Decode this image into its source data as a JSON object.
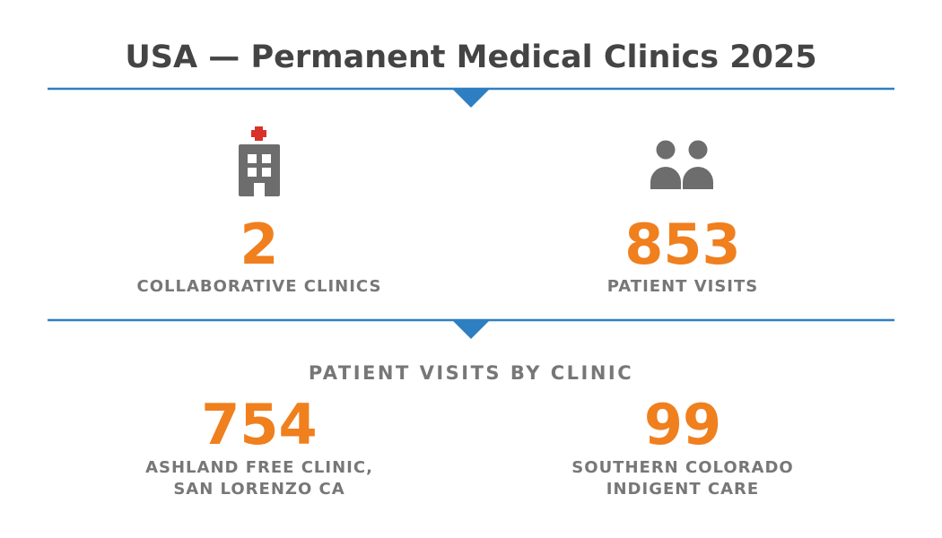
{
  "header": {
    "title": "USA — Permanent Medical Clinics 2025"
  },
  "stats": [
    {
      "value": 2,
      "label": "COLLABORATIVE CLINICS"
    },
    {
      "value": 853,
      "label": "PATIENT VISITS"
    }
  ],
  "breakdown": {
    "title": "PATIENT VISITS BY CLINIC",
    "clinics": [
      {
        "value": 754,
        "label_lines": [
          "ASHLAND FREE CLINIC,",
          "SAN LORENZO CA"
        ]
      },
      {
        "value": 99,
        "label_lines": [
          "SOUTHERN COLORADO",
          "INDIGENT CARE"
        ]
      }
    ]
  }
}
